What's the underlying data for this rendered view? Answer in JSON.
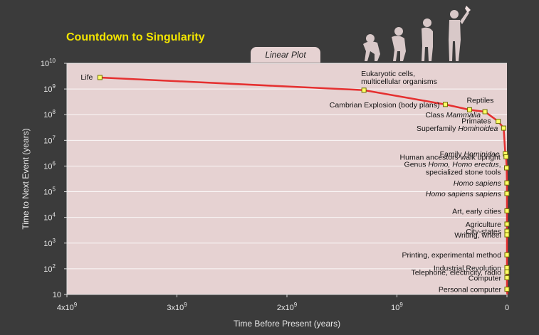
{
  "title": "Countdown to Singularity",
  "tab_label": "Linear Plot",
  "colors": {
    "background": "#3b3b3b",
    "plot_background": "#e6d2d2",
    "title": "#f2e400",
    "curve": "#e53030",
    "marker_fill": "#ffff66",
    "marker_stroke": "#6a6a00"
  },
  "chart_data": {
    "type": "line",
    "title": "Countdown to Singularity",
    "xlabel": "Time Before Present (years)",
    "ylabel": "Time to Next Event (years)",
    "x_scale": "linear",
    "y_scale": "log",
    "xlim": [
      4000000000,
      0
    ],
    "ylim": [
      10,
      10000000000
    ],
    "grid": true,
    "x_tick_labels": [
      {
        "value": 4000000000,
        "base": "4x10",
        "exp": "9"
      },
      {
        "value": 3000000000,
        "base": "3x10",
        "exp": "9"
      },
      {
        "value": 2000000000,
        "base": "2x10",
        "exp": "9"
      },
      {
        "value": 1000000000,
        "base": "10",
        "exp": "9"
      },
      {
        "value": 0,
        "base": "0",
        "exp": ""
      }
    ],
    "y_tick_labels": [
      {
        "value": 10000000000,
        "base": "10",
        "exp": "10"
      },
      {
        "value": 1000000000,
        "base": "10",
        "exp": "9"
      },
      {
        "value": 100000000,
        "base": "10",
        "exp": "8"
      },
      {
        "value": 10000000,
        "base": "10",
        "exp": "7"
      },
      {
        "value": 1000000,
        "base": "10",
        "exp": "6"
      },
      {
        "value": 100000,
        "base": "10",
        "exp": "5"
      },
      {
        "value": 10000,
        "base": "10",
        "exp": "4"
      },
      {
        "value": 1000,
        "base": "10",
        "exp": "3"
      },
      {
        "value": 100,
        "base": "10",
        "exp": "2"
      },
      {
        "value": 10,
        "base": "10",
        "exp": ""
      }
    ],
    "points": [
      {
        "label": [
          "Life"
        ],
        "x": 3700000000,
        "y": 2800000000
      },
      {
        "label": [
          "Eukaryotic cells,",
          "multicellular organisms"
        ],
        "x": 1300000000,
        "y": 900000000
      },
      {
        "label": [
          "Cambrian Explosion (body plans)"
        ],
        "x": 560000000,
        "y": 250000000
      },
      {
        "label": [
          "Reptiles"
        ],
        "x": 340000000,
        "y": 155000000
      },
      {
        "label": [
          "Class |Mammalia|"
        ],
        "x": 200000000,
        "y": 130000000
      },
      {
        "label": [
          "Primates"
        ],
        "x": 80000000,
        "y": 55000000
      },
      {
        "label": [
          "Superfamily |Hominoidea|"
        ],
        "x": 30000000,
        "y": 30000000
      },
      {
        "label": [
          "Family |Hominidae|"
        ],
        "x": 15000000,
        "y": 3000000
      },
      {
        "label": [
          "Human ancestors walk upright"
        ],
        "x": 8000000,
        "y": 2300000
      },
      {
        "label": [
          "Genus |Homo, Homo erectus|,",
          "specialized stone tools"
        ],
        "x": 3000000,
        "y": 850000
      },
      {
        "label": [
          "|Homo sapiens|"
        ],
        "x": 500000,
        "y": 220000
      },
      {
        "label": [
          "|Homo sapiens sapiens|"
        ],
        "x": 150000,
        "y": 85000
      },
      {
        "label": [
          "Art, early cities"
        ],
        "x": 40000,
        "y": 18000
      },
      {
        "label": [
          "Agriculture"
        ],
        "x": 12000,
        "y": 5500
      },
      {
        "label": [
          "City-states"
        ],
        "x": 6000,
        "y": 2900
      },
      {
        "label": [
          "Writing, wheel"
        ],
        "x": 5000,
        "y": 2100
      },
      {
        "label": [
          "Printing, experimental method"
        ],
        "x": 500,
        "y": 350
      },
      {
        "label": [
          "Industrial Revolution"
        ],
        "x": 250,
        "y": 110
      },
      {
        "label": [
          "Telephone,  electricity, radio"
        ],
        "x": 120,
        "y": 75
      },
      {
        "label": [
          "Computer"
        ],
        "x": 60,
        "y": 45
      },
      {
        "label": [
          "Personal computer"
        ],
        "x": 30,
        "y": 16
      }
    ]
  }
}
